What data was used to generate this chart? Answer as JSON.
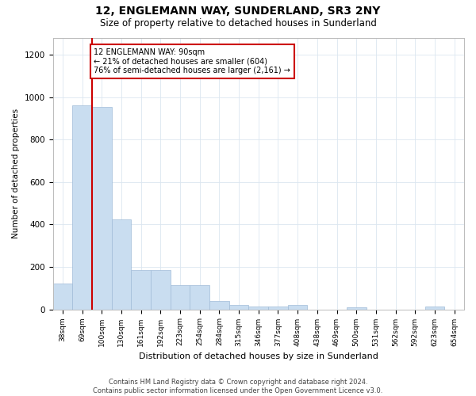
{
  "title": "12, ENGLEMANN WAY, SUNDERLAND, SR3 2NY",
  "subtitle": "Size of property relative to detached houses in Sunderland",
  "xlabel": "Distribution of detached houses by size in Sunderland",
  "ylabel": "Number of detached properties",
  "categories": [
    "38sqm",
    "69sqm",
    "100sqm",
    "130sqm",
    "161sqm",
    "192sqm",
    "223sqm",
    "254sqm",
    "284sqm",
    "315sqm",
    "346sqm",
    "377sqm",
    "408sqm",
    "438sqm",
    "469sqm",
    "500sqm",
    "531sqm",
    "562sqm",
    "592sqm",
    "623sqm",
    "654sqm"
  ],
  "values": [
    120,
    960,
    955,
    425,
    185,
    185,
    115,
    115,
    40,
    20,
    15,
    15,
    20,
    0,
    0,
    10,
    0,
    0,
    0,
    15,
    0
  ],
  "bar_color": "#c9ddf0",
  "bar_edge_color": "#a0bcd8",
  "vline_color": "#cc0000",
  "annotation_text": "12 ENGLEMANN WAY: 90sqm\n← 21% of detached houses are smaller (604)\n76% of semi-detached houses are larger (2,161) →",
  "annotation_box_facecolor": "#ffffff",
  "annotation_box_edgecolor": "#cc0000",
  "ylim": [
    0,
    1280
  ],
  "yticks": [
    0,
    200,
    400,
    600,
    800,
    1000,
    1200
  ],
  "footer": "Contains HM Land Registry data © Crown copyright and database right 2024.\nContains public sector information licensed under the Open Government Licence v3.0.",
  "background_color": "#ffffff",
  "grid_color": "#dce6f0"
}
